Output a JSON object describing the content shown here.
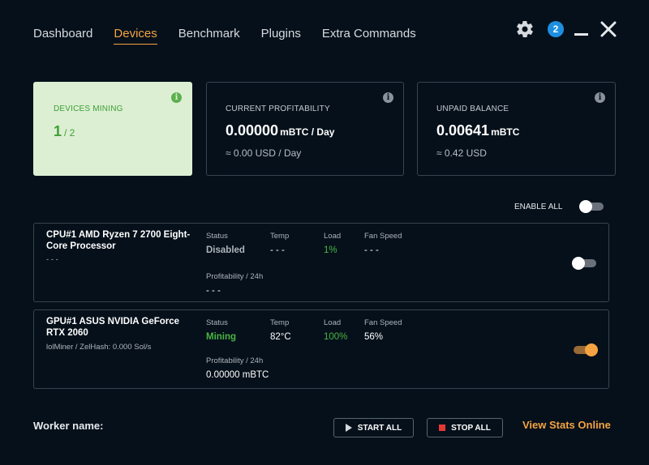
{
  "nav": {
    "items": [
      {
        "label": "Dashboard"
      },
      {
        "label": "Devices"
      },
      {
        "label": "Benchmark"
      },
      {
        "label": "Plugins"
      },
      {
        "label": "Extra Commands"
      }
    ],
    "active": "Devices"
  },
  "header": {
    "notification_count": "2"
  },
  "cards": {
    "mining": {
      "label": "DEVICES MINING",
      "active": "1",
      "total": "/ 2"
    },
    "profitability": {
      "label": "CURRENT PROFITABILITY",
      "value": "0.00000",
      "unit": "mBTC / Day",
      "usd": "≈ 0.00 USD / Day"
    },
    "balance": {
      "label": "UNPAID BALANCE",
      "value": "0.00641",
      "unit": "mBTC",
      "usd": "≈ 0.42 USD"
    }
  },
  "enable_all": {
    "label": "ENABLE ALL",
    "enabled": false
  },
  "devices": [
    {
      "name": "CPU#1 AMD Ryzen 7 2700 Eight-Core Processor",
      "algo": "- - -",
      "status_label": "Status",
      "status": "Disabled",
      "temp_label": "Temp",
      "temp": "- - -",
      "load_label": "Load",
      "load": "1%",
      "fan_label": "Fan Speed",
      "fan": "- - -",
      "profit_label": "Profitability / 24h",
      "profit": "- - -",
      "enabled": false
    },
    {
      "name": "GPU#1 ASUS NVIDIA GeForce RTX 2060",
      "algo": "lolMiner / ZelHash: 0.000 Sol/s",
      "status_label": "Status",
      "status": "Mining",
      "temp_label": "Temp",
      "temp": "82°C",
      "load_label": "Load",
      "load": "100%",
      "fan_label": "Fan Speed",
      "fan": "56%",
      "profit_label": "Profitability / 24h",
      "profit": "0.00000 mBTC",
      "enabled": true
    }
  ],
  "footer": {
    "worker_label": "Worker name:",
    "start_label": "START ALL",
    "stop_label": "STOP ALL",
    "stats_link": "View Stats Online"
  },
  "colors": {
    "background": "#05101a",
    "accent": "#f5a342",
    "mining_green": "#4bb543",
    "notification_blue": "#1e8fe0",
    "stop_red": "#e53935"
  },
  "icons": [
    "gear-icon",
    "minimize-icon",
    "close-icon",
    "info-icon",
    "play-icon",
    "stop-icon"
  ]
}
